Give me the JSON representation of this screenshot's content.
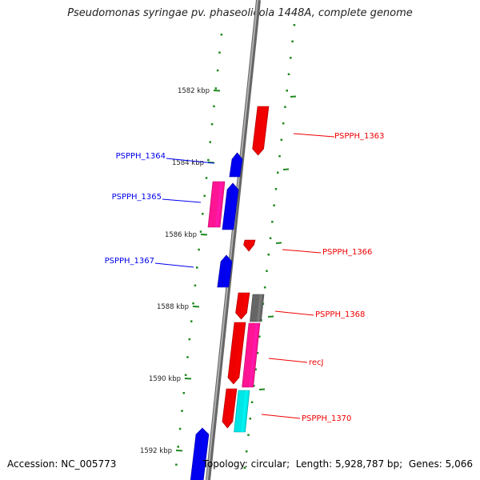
{
  "title": "Pseudomonas syringae pv. phaseolicola 1448A, complete genome",
  "footer": {
    "accession_label": "Accession:",
    "accession": "NC_005773",
    "topology_label": "Topology:",
    "topology": "circular",
    "length_label": "Length:",
    "length": "5,928,787 bp",
    "genes_label": "Genes:",
    "genes": "5,066"
  },
  "scale_labels": [
    "1582 kbp",
    "1584 kbp",
    "1586 kbp",
    "1588 kbp",
    "1590 kbp",
    "1592 kbp"
  ],
  "genes": [
    {
      "label": "PSPPH_1363",
      "strand": "forward",
      "color": "#ee0000"
    },
    {
      "label": "PSPPH_1364",
      "strand": "reverse",
      "color": "#0000ee"
    },
    {
      "label": "PSPPH_1365",
      "strand": "reverse",
      "color": "#0000ee"
    },
    {
      "label": "PSPPH_1366",
      "strand": "forward",
      "color": "#ee0000"
    },
    {
      "label": "PSPPH_1367",
      "strand": "reverse",
      "color": "#0000ee"
    },
    {
      "label": "PSPPH_1368",
      "strand": "forward",
      "color": "#ee0000"
    },
    {
      "label": "recJ",
      "strand": "forward",
      "color": "#ee0000"
    },
    {
      "label": "PSPPH_1370",
      "strand": "forward",
      "color": "#ee0000"
    }
  ],
  "colors": {
    "backbone": "#808080",
    "ticks": "#1f8a1f",
    "forward_gene": "#ee0000",
    "reverse_gene": "#0000ee",
    "magenta_feature": "#ff1493",
    "gray_feature": "#666666",
    "cyan_feature": "#00e5e5"
  }
}
